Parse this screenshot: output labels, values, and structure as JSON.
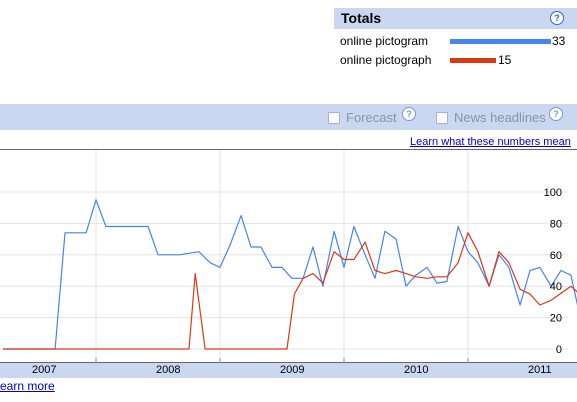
{
  "totals": {
    "title": "Totals",
    "help_glyph": "?",
    "terms": [
      {
        "name": "online pictogram",
        "total": "33",
        "color": "#4684ee"
      },
      {
        "name": "online pictograph",
        "total": "15",
        "color": "#dc3912"
      }
    ]
  },
  "toolbar": {
    "forecast_label": "Forecast",
    "news_label": "News headlines",
    "help_glyph": "?"
  },
  "learn_numbers_link": "Learn what these numbers mean",
  "learn_more_link": "earn more",
  "chart_data": {
    "type": "line",
    "xlim": [
      2006.75,
      2011.25
    ],
    "ylim": [
      0,
      105
    ],
    "x_tick_labels": [
      "2007",
      "2008",
      "2009",
      "2010",
      "2011"
    ],
    "x_tick_values": [
      2007,
      2008,
      2009,
      2010,
      2011
    ],
    "y_tick_labels": [
      "0",
      "20",
      "40",
      "60",
      "80",
      "100"
    ],
    "y_tick_values": [
      0,
      20,
      40,
      60,
      80,
      100
    ],
    "grid": true,
    "series": [
      {
        "name": "online pictogram",
        "color": "#4684ee",
        "points": [
          [
            2006.75,
            0
          ],
          [
            2006.87,
            0
          ],
          [
            2006.95,
            0
          ],
          [
            2007.0,
            0
          ],
          [
            2007.08,
            0
          ],
          [
            2007.17,
            0
          ],
          [
            2007.25,
            74
          ],
          [
            2007.33,
            74
          ],
          [
            2007.42,
            74
          ],
          [
            2007.5,
            95
          ],
          [
            2007.58,
            78
          ],
          [
            2007.67,
            78
          ],
          [
            2007.75,
            78
          ],
          [
            2007.83,
            78
          ],
          [
            2007.92,
            78
          ],
          [
            2008.0,
            60
          ],
          [
            2008.17,
            60
          ],
          [
            2008.33,
            62
          ],
          [
            2008.42,
            55
          ],
          [
            2008.5,
            52
          ],
          [
            2008.58,
            66
          ],
          [
            2008.67,
            85
          ],
          [
            2008.75,
            65
          ],
          [
            2008.83,
            65
          ],
          [
            2008.92,
            52
          ],
          [
            2009.0,
            52
          ],
          [
            2009.08,
            45
          ],
          [
            2009.17,
            45
          ],
          [
            2009.25,
            65
          ],
          [
            2009.33,
            40
          ],
          [
            2009.42,
            75
          ],
          [
            2009.5,
            52
          ],
          [
            2009.58,
            78
          ],
          [
            2009.67,
            60
          ],
          [
            2009.75,
            45
          ],
          [
            2009.83,
            75
          ],
          [
            2009.92,
            70
          ],
          [
            2010.0,
            40
          ],
          [
            2010.08,
            47
          ],
          [
            2010.17,
            52
          ],
          [
            2010.25,
            42
          ],
          [
            2010.33,
            43
          ],
          [
            2010.42,
            78
          ],
          [
            2010.5,
            62
          ],
          [
            2010.58,
            55
          ],
          [
            2010.67,
            40
          ],
          [
            2010.75,
            60
          ],
          [
            2010.83,
            52
          ],
          [
            2010.92,
            28
          ],
          [
            2011.0,
            50
          ],
          [
            2011.08,
            52
          ],
          [
            2011.17,
            40
          ],
          [
            2011.25,
            50
          ],
          [
            2011.33,
            47
          ],
          [
            2011.4,
            22
          ]
        ]
      },
      {
        "name": "online pictograph",
        "color": "#dc3912",
        "points": [
          [
            2006.75,
            0
          ],
          [
            2007.0,
            0
          ],
          [
            2007.25,
            0
          ],
          [
            2007.5,
            0
          ],
          [
            2007.75,
            0
          ],
          [
            2008.0,
            0
          ],
          [
            2008.25,
            0
          ],
          [
            2008.3,
            48
          ],
          [
            2008.38,
            0
          ],
          [
            2008.5,
            0
          ],
          [
            2008.75,
            0
          ],
          [
            2009.0,
            0
          ],
          [
            2009.04,
            0
          ],
          [
            2009.1,
            35
          ],
          [
            2009.17,
            45
          ],
          [
            2009.25,
            48
          ],
          [
            2009.33,
            42
          ],
          [
            2009.42,
            62
          ],
          [
            2009.5,
            57
          ],
          [
            2009.58,
            57
          ],
          [
            2009.67,
            68
          ],
          [
            2009.75,
            50
          ],
          [
            2009.83,
            48
          ],
          [
            2009.92,
            50
          ],
          [
            2010.0,
            48
          ],
          [
            2010.08,
            46
          ],
          [
            2010.17,
            45
          ],
          [
            2010.25,
            46
          ],
          [
            2010.33,
            46
          ],
          [
            2010.42,
            55
          ],
          [
            2010.5,
            74
          ],
          [
            2010.58,
            62
          ],
          [
            2010.67,
            40
          ],
          [
            2010.75,
            62
          ],
          [
            2010.83,
            55
          ],
          [
            2010.92,
            38
          ],
          [
            2011.0,
            35
          ],
          [
            2011.08,
            28
          ],
          [
            2011.17,
            31
          ],
          [
            2011.33,
            40
          ],
          [
            2011.4,
            35
          ]
        ]
      }
    ]
  }
}
